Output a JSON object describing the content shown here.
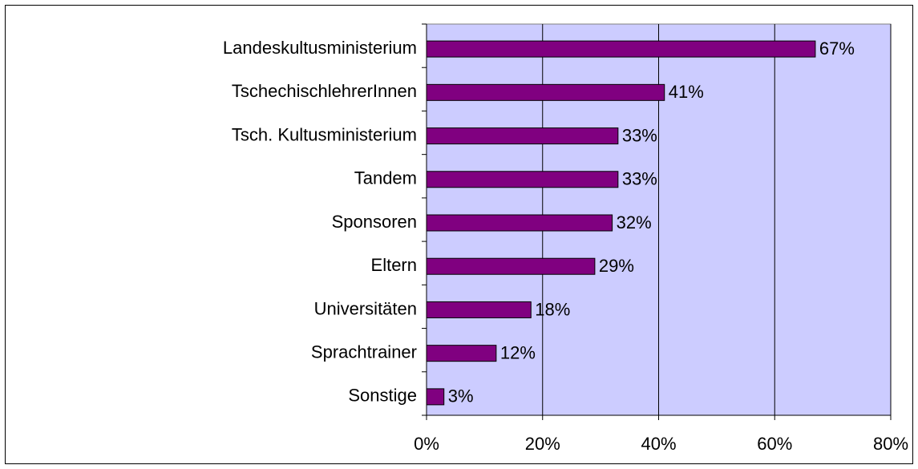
{
  "chart_data": {
    "type": "barh",
    "categories": [
      "Landeskultusministerium",
      "TschechischlehrerInnen",
      "Tsch. Kultusministerium",
      "Tandem",
      "Sponsoren",
      "Eltern",
      "Universitäten",
      "Sprachtrainer",
      "Sonstige"
    ],
    "values": [
      67,
      41,
      33,
      33,
      32,
      29,
      18,
      12,
      3
    ],
    "value_labels": [
      "67%",
      "41%",
      "33%",
      "33%",
      "32%",
      "29%",
      "18%",
      "12%",
      "3%"
    ],
    "color": "#800080",
    "xlim": [
      0,
      80
    ],
    "xticks": [
      {
        "value": 0,
        "label": "0%"
      },
      {
        "value": 20,
        "label": "20%"
      },
      {
        "value": 40,
        "label": "40%"
      },
      {
        "value": 60,
        "label": "60%"
      },
      {
        "value": 80,
        "label": "80%"
      }
    ],
    "grid": true
  }
}
